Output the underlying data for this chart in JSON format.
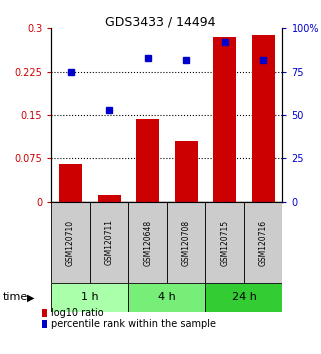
{
  "title": "GDS3433 / 14494",
  "samples": [
    "GSM120710",
    "GSM120711",
    "GSM120648",
    "GSM120708",
    "GSM120715",
    "GSM120716"
  ],
  "log10_ratio": [
    0.065,
    0.012,
    0.143,
    0.105,
    0.285,
    0.288
  ],
  "percentile_rank": [
    75,
    53,
    83,
    82,
    92,
    82
  ],
  "groups": [
    {
      "label": "1 h",
      "indices": [
        0,
        1
      ],
      "color": "#aaffaa"
    },
    {
      "label": "4 h",
      "indices": [
        2,
        3
      ],
      "color": "#77ee77"
    },
    {
      "label": "24 h",
      "indices": [
        4,
        5
      ],
      "color": "#33cc33"
    }
  ],
  "bar_color": "#cc0000",
  "dot_color": "#0000cc",
  "ylim_left": [
    0,
    0.3
  ],
  "ylim_right": [
    0,
    100
  ],
  "yticks_left": [
    0,
    0.075,
    0.15,
    0.225,
    0.3
  ],
  "ytick_labels_left": [
    "0",
    "0.075",
    "0.15",
    "0.225",
    "0.3"
  ],
  "yticks_right": [
    0,
    25,
    50,
    75,
    100
  ],
  "ytick_labels_right": [
    "0",
    "25",
    "50",
    "75",
    "100%"
  ],
  "hlines": [
    0.075,
    0.15,
    0.225
  ],
  "bar_width": 0.6,
  "time_label": "time",
  "legend_bar": "log10 ratio",
  "legend_dot": "percentile rank within the sample",
  "left_label_color": "#cc0000",
  "right_label_color": "#0000cc",
  "sample_box_color": "#cccccc",
  "n_samples": 6
}
